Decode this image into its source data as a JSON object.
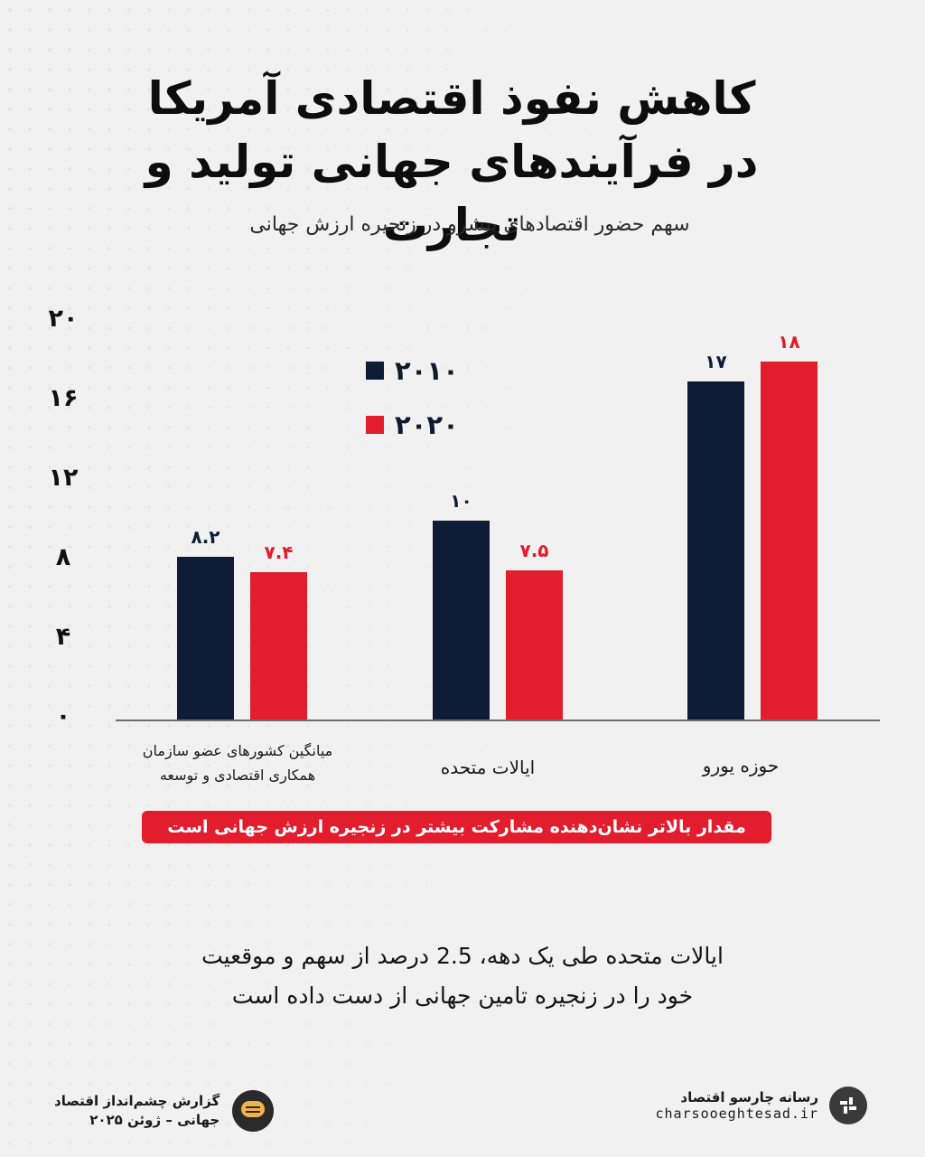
{
  "title_line1": "کاهش نفوذ اقتصادی آمریکا",
  "title_line2": "در فرآیندهای جهانی تولید و تجارت",
  "subtitle": "سهم حضور اقتصادهای پیشرو در زنجیره ارزش جهانی",
  "colors": {
    "series_2010": "#0f1c36",
    "series_2020": "#e11d2e"
  },
  "chart_data": {
    "type": "bar",
    "categories": [
      "میانگین کشورهای عضو سازمان همکاری اقتصادی و توسعه",
      "ایالات متحده",
      "حوزه یورو"
    ],
    "series": [
      {
        "name": "۲۰۱۰",
        "values": [
          8.2,
          10,
          17
        ],
        "labels": [
          "۸.۲",
          "۱۰",
          "۱۷"
        ]
      },
      {
        "name": "۲۰۲۰",
        "values": [
          7.4,
          7.5,
          18
        ],
        "labels": [
          "۷.۴",
          "۷.۵",
          "۱۸"
        ]
      }
    ],
    "ylim": [
      0,
      20
    ],
    "yticks": [
      "۰",
      "۴",
      "۸",
      "۱۲",
      "۱۶",
      "۲۰"
    ],
    "legend_position": "top-left",
    "grid": false
  },
  "cat_labels": {
    "oecd_line1": "میانگین کشورهای عضو سازمان",
    "oecd_line2": "همکاری اقتصادی و توسعه",
    "us": "ایالات متحده",
    "euro": "حوزه یورو"
  },
  "note": "مقدار بالاتر نشان‌دهنده مشارکت بیشتر در زنجیره ارزش جهانی است",
  "caption_line1": "ایالات متحده طی یک دهه، 2.5 درصد از سهم و موقعیت",
  "caption_line2": "خود را در زنجیره تامین جهانی از دست داده است",
  "footer": {
    "report_line1": "گزارش چشم‌انداز اقتصاد",
    "report_line2": "جهانی – ژوئن ۲۰۲۵",
    "brand_name": "رسانه چارسو اقتصاد",
    "brand_url": "charsooeghtesad.ir",
    "bubble_icon": "chat-bubble-icon",
    "logo_icon": "charsoo-logo-icon"
  }
}
